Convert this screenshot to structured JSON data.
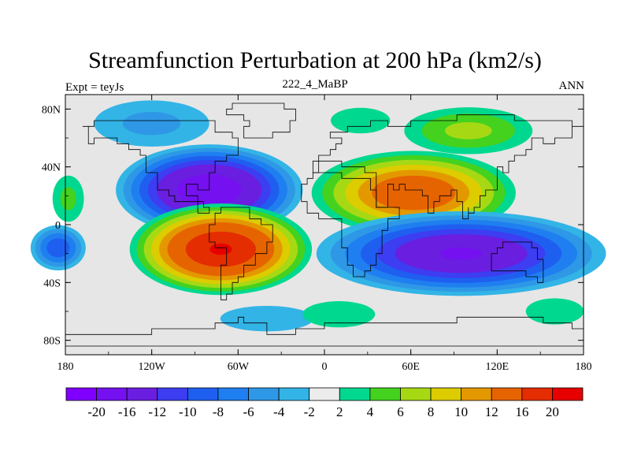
{
  "header": {
    "title": "Streamfunction Perturbation at 200 hPa (km2/s)",
    "left_label": "Expt = teyJs",
    "center_label": "222_4_MaBP",
    "right_label": "ANN"
  },
  "chart_data": {
    "type": "heatmap",
    "title": "Streamfunction Perturbation at 200 hPa (km2/s)",
    "subtitle_left": "Expt = teyJs",
    "subtitle_center": "222_4_MaBP",
    "subtitle_right": "ANN",
    "xlim": [
      -180,
      180
    ],
    "ylim": [
      -90,
      90
    ],
    "x_ticks": [
      {
        "value": -180,
        "label": "180"
      },
      {
        "value": -120,
        "label": "120W"
      },
      {
        "value": -60,
        "label": "60W"
      },
      {
        "value": 0,
        "label": "0"
      },
      {
        "value": 60,
        "label": "60E"
      },
      {
        "value": 120,
        "label": "120E"
      },
      {
        "value": 180,
        "label": "180"
      }
    ],
    "y_ticks": [
      {
        "value": 80,
        "label": "80N"
      },
      {
        "value": 40,
        "label": "40N"
      },
      {
        "value": 0,
        "label": "0"
      },
      {
        "value": -40,
        "label": "40S"
      },
      {
        "value": -80,
        "label": "80S"
      }
    ],
    "background": "#e6e6e6",
    "colorbar": {
      "colors": [
        "#8000ff",
        "#7510f0",
        "#6a1ee0",
        "#3d3df2",
        "#1f5ff0",
        "#1f7ff0",
        "#2e98e6",
        "#33b4e6",
        "#ececec",
        "#00d88f",
        "#44d21f",
        "#a6d914",
        "#dccc00",
        "#e49800",
        "#e66400",
        "#e42d00",
        "#e60000"
      ],
      "labels": [
        "-20",
        "-16",
        "-12",
        "-10",
        "-8",
        "-6",
        "-4",
        "-2",
        "2",
        "4",
        "6",
        "8",
        "10",
        "12",
        "16",
        "20"
      ]
    },
    "features": [
      {
        "name": "pacific-north-negative",
        "lon": -80,
        "lat": 24,
        "rlon": 70,
        "rlat": 34,
        "min": -20,
        "shape": 1.4
      },
      {
        "name": "pacific-south-positive",
        "lon": -72,
        "lat": -17,
        "rlon": 68,
        "rlat": 34,
        "max": 21,
        "shape": 1.4
      },
      {
        "name": "eurasia-north-positive",
        "lon": 62,
        "lat": 22,
        "rlon": 78,
        "rlat": 32,
        "max": 16,
        "shape": 1.4
      },
      {
        "name": "indian-south-negative",
        "lon": 95,
        "lat": -20,
        "rlon": 110,
        "rlat": 32,
        "min": -17,
        "shape": 1.4
      },
      {
        "name": "far-west-south-negative",
        "lon": -185,
        "lat": -16,
        "rlon": 22,
        "rlat": 18,
        "min": -10,
        "shape": 1.6
      },
      {
        "name": "arctic-negative",
        "lon": -120,
        "lat": 70,
        "rlon": 55,
        "rlat": 22,
        "min": -5,
        "shape": 1.6
      },
      {
        "name": "south-ocean-negative",
        "lon": -40,
        "lat": -65,
        "rlon": 55,
        "rlat": 15,
        "min": -3.5,
        "shape": 1.6
      },
      {
        "name": "asia-north-positive",
        "lon": 100,
        "lat": 65,
        "rlon": 55,
        "rlat": 20,
        "max": 7,
        "shape": 1.6
      },
      {
        "name": "europe-high-positive",
        "lon": 25,
        "lat": 72,
        "rlon": 35,
        "rlat": 15,
        "max": 3.5,
        "shape": 1.6
      },
      {
        "name": "far-west-north-positive",
        "lon": -178,
        "lat": 18,
        "rlon": 15,
        "rlat": 22,
        "max": 5,
        "shape": 1.6
      },
      {
        "name": "south-atlantic-positive",
        "lon": 10,
        "lat": -62,
        "rlon": 50,
        "rlat": 18,
        "max": 3,
        "shape": 1.6
      },
      {
        "name": "south-pacific-positive",
        "lon": 160,
        "lat": -60,
        "rlon": 40,
        "rlat": 18,
        "max": 3,
        "shape": 1.6
      }
    ]
  }
}
